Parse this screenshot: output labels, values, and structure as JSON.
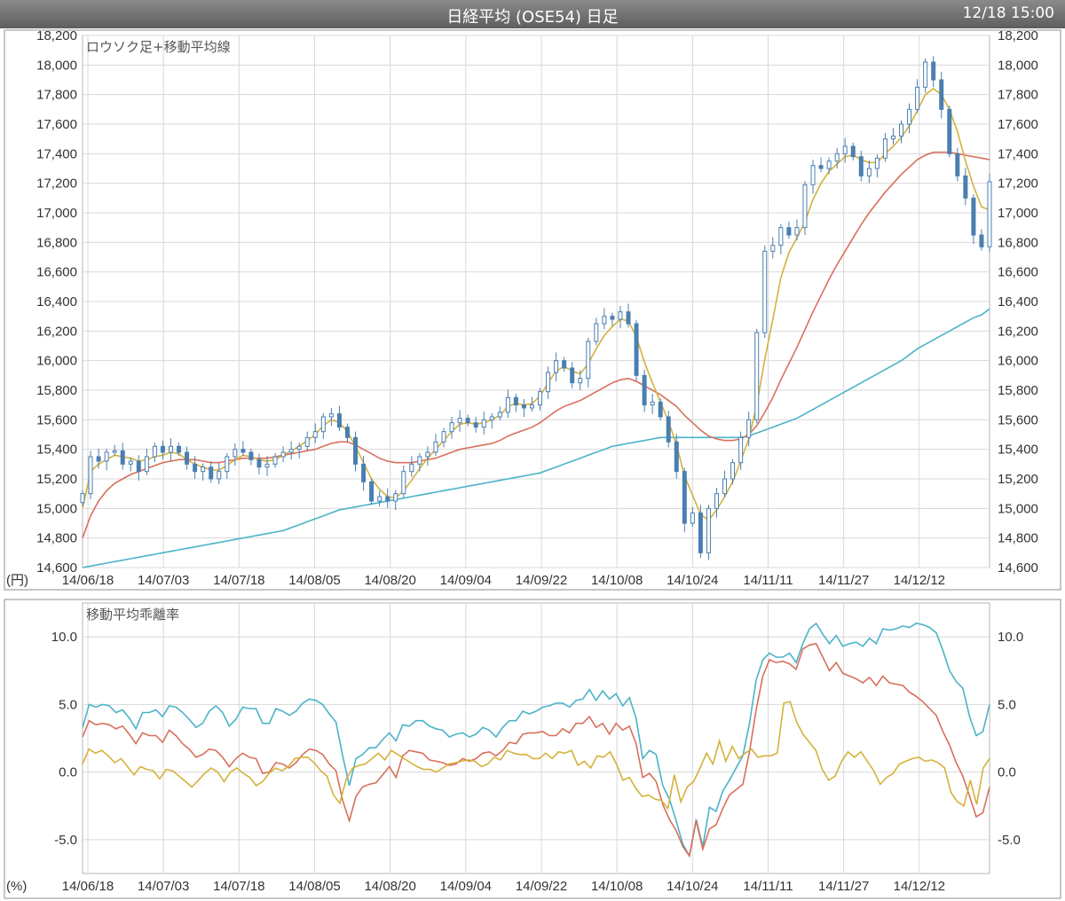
{
  "header": {
    "title": "日経平均 (OSE54) 日足",
    "timestamp": "12/18 15:00"
  },
  "chart_data": [
    {
      "type": "candlestick",
      "title": "ロウソク足+移動平均線",
      "unit_label": "(円)",
      "ylim": [
        14600,
        18200
      ],
      "y_ticks": [
        "18,200",
        "18,000",
        "17,800",
        "17,600",
        "17,400",
        "17,200",
        "17,000",
        "16,800",
        "16,600",
        "16,400",
        "16,200",
        "16,000",
        "15,800",
        "15,600",
        "15,400",
        "15,200",
        "15,000",
        "14,800",
        "14,600"
      ],
      "x_labels": [
        "14/06/18",
        "14/07/03",
        "14/07/18",
        "14/08/05",
        "14/08/20",
        "14/09/04",
        "14/09/22",
        "14/10/08",
        "14/10/24",
        "14/11/11",
        "14/11/27",
        "14/12/12"
      ],
      "grid": true,
      "colors": {
        "candle": "#4a7fb0",
        "ma_short": "#d4b23c",
        "ma_mid": "#d8705c",
        "ma_long": "#4bb3c8"
      },
      "close": [
        15100,
        15350,
        15320,
        15380,
        15390,
        15300,
        15320,
        15250,
        15350,
        15420,
        15380,
        15420,
        15380,
        15300,
        15250,
        15280,
        15200,
        15250,
        15350,
        15400,
        15380,
        15330,
        15280,
        15300,
        15350,
        15380,
        15400,
        15420,
        15480,
        15520,
        15620,
        15640,
        15550,
        15480,
        15300,
        15180,
        15050,
        15080,
        15050,
        15100,
        15250,
        15300,
        15350,
        15380,
        15450,
        15520,
        15580,
        15610,
        15580,
        15550,
        15600,
        15620,
        15650,
        15750,
        15700,
        15680,
        15700,
        15790,
        15920,
        16000,
        15950,
        15850,
        15880,
        16130,
        16250,
        16300,
        16280,
        16330,
        16250,
        15900,
        15700,
        15720,
        15620,
        15450,
        15250,
        14900,
        14970,
        14700,
        15000,
        15100,
        15200,
        15310,
        15480,
        15600,
        16190,
        16740,
        16780,
        16900,
        16850,
        16900,
        17190,
        17320,
        17300,
        17350,
        17400,
        17450,
        17380,
        17250,
        17300,
        17370,
        17500,
        17520,
        17600,
        17700,
        17850,
        18020,
        17900,
        17700,
        17400,
        17250,
        17100,
        16850,
        16770,
        17210
      ],
      "ma_short": [
        15000,
        15250,
        15300,
        15330,
        15360,
        15350,
        15340,
        15320,
        15330,
        15350,
        15360,
        15380,
        15370,
        15330,
        15300,
        15280,
        15260,
        15260,
        15290,
        15330,
        15360,
        15350,
        15330,
        15320,
        15330,
        15360,
        15390,
        15420,
        15460,
        15500,
        15560,
        15600,
        15580,
        15520,
        15420,
        15310,
        15200,
        15130,
        15080,
        15070,
        15120,
        15190,
        15270,
        15340,
        15400,
        15460,
        15520,
        15570,
        15580,
        15570,
        15580,
        15600,
        15630,
        15690,
        15710,
        15700,
        15710,
        15760,
        15850,
        15930,
        15960,
        15930,
        15910,
        15980,
        16080,
        16170,
        16230,
        16280,
        16270,
        16160,
        15990,
        15850,
        15720,
        15590,
        15430,
        15220,
        15090,
        14960,
        14920,
        14990,
        15080,
        15180,
        15320,
        15470,
        15700,
        16010,
        16280,
        16560,
        16730,
        16830,
        16940,
        17090,
        17200,
        17280,
        17330,
        17380,
        17390,
        17360,
        17340,
        17340,
        17400,
        17450,
        17510,
        17590,
        17690,
        17800,
        17840,
        17800,
        17700,
        17550,
        17350,
        17180,
        17040,
        17020
      ],
      "ma_mid": [
        14800,
        14950,
        15050,
        15120,
        15170,
        15200,
        15230,
        15250,
        15270,
        15290,
        15310,
        15320,
        15330,
        15330,
        15330,
        15320,
        15310,
        15310,
        15320,
        15330,
        15340,
        15340,
        15340,
        15340,
        15350,
        15360,
        15370,
        15380,
        15390,
        15400,
        15420,
        15440,
        15450,
        15450,
        15430,
        15400,
        15370,
        15340,
        15320,
        15310,
        15310,
        15310,
        15320,
        15330,
        15340,
        15360,
        15380,
        15400,
        15410,
        15420,
        15430,
        15440,
        15460,
        15490,
        15510,
        15530,
        15550,
        15580,
        15620,
        15660,
        15690,
        15710,
        15730,
        15760,
        15790,
        15820,
        15850,
        15870,
        15880,
        15860,
        15830,
        15800,
        15770,
        15730,
        15690,
        15630,
        15580,
        15530,
        15490,
        15470,
        15460,
        15460,
        15470,
        15500,
        15560,
        15650,
        15750,
        15870,
        15980,
        16090,
        16210,
        16330,
        16440,
        16550,
        16650,
        16740,
        16830,
        16920,
        17000,
        17070,
        17140,
        17200,
        17260,
        17310,
        17360,
        17390,
        17410,
        17410,
        17410,
        17400,
        17390,
        17380,
        17370,
        17360
      ],
      "ma_long": [
        14600,
        14610,
        14620,
        14630,
        14640,
        14650,
        14660,
        14670,
        14680,
        14690,
        14700,
        14710,
        14720,
        14730,
        14740,
        14750,
        14760,
        14770,
        14780,
        14790,
        14800,
        14810,
        14820,
        14830,
        14840,
        14850,
        14870,
        14890,
        14910,
        14930,
        14950,
        14970,
        14990,
        15000,
        15010,
        15020,
        15030,
        15040,
        15050,
        15060,
        15070,
        15080,
        15090,
        15100,
        15110,
        15120,
        15130,
        15140,
        15150,
        15160,
        15170,
        15180,
        15190,
        15200,
        15210,
        15220,
        15230,
        15240,
        15260,
        15280,
        15300,
        15320,
        15340,
        15360,
        15380,
        15400,
        15420,
        15430,
        15440,
        15450,
        15460,
        15470,
        15480,
        15480,
        15480,
        15480,
        15480,
        15480,
        15480,
        15480,
        15480,
        15480,
        15480,
        15490,
        15510,
        15530,
        15550,
        15570,
        15590,
        15610,
        15640,
        15670,
        15700,
        15730,
        15760,
        15790,
        15820,
        15850,
        15880,
        15910,
        15940,
        15970,
        16000,
        16040,
        16080,
        16110,
        16140,
        16170,
        16200,
        16230,
        16260,
        16290,
        16310,
        16350
      ]
    },
    {
      "type": "line",
      "title": "移動平均乖離率",
      "unit_label": "(%)",
      "ylim": [
        -7.5,
        12.5
      ],
      "y_ticks": [
        "10.0",
        "5.0",
        "0.0",
        "-5.0"
      ],
      "x_labels": [
        "14/06/18",
        "14/07/03",
        "14/07/18",
        "14/08/05",
        "14/08/20",
        "14/09/04",
        "14/09/22",
        "14/10/08",
        "14/10/24",
        "14/11/11",
        "14/11/27",
        "14/12/12"
      ],
      "grid": true,
      "series": [
        {
          "color": "#4bb3c8",
          "values": [
            3.3,
            5.0,
            4.8,
            5.0,
            4.9,
            4.4,
            4.6,
            4.0,
            3.2,
            4.4,
            4.4,
            4.6,
            4.1,
            4.9,
            4.8,
            4.4,
            3.9,
            3.3,
            3.6,
            4.5,
            4.9,
            4.4,
            3.4,
            3.9,
            4.8,
            4.7,
            4.7,
            3.6,
            3.6,
            4.7,
            4.5,
            4.2,
            4.5,
            5.1,
            5.4,
            5.3,
            5.0,
            4.3,
            3.7,
            1.2,
            -1.0,
            1.0,
            1.3,
            1.8,
            1.8,
            2.4,
            2.9,
            2.3,
            3.5,
            3.4,
            3.8,
            3.8,
            3.4,
            3.2,
            3.1,
            2.6,
            2.8,
            2.9,
            2.6,
            2.8,
            3.3,
            3.1,
            2.6,
            3.3,
            3.8,
            3.8,
            4.5,
            4.3,
            4.5,
            4.8,
            4.9,
            5.1,
            5.1,
            4.8,
            5.3,
            5.4,
            6.1,
            5.3,
            6.0,
            5.4,
            5.8,
            4.9,
            5.5,
            4.0,
            1.0,
            1.6,
            1.3,
            -1.0,
            -2.0,
            -3.6,
            -5.3,
            -6.2,
            -3.5,
            -5.5,
            -2.6,
            -2.9,
            -1.4,
            -0.6,
            0.3,
            1.2,
            3.6,
            6.8,
            8.3,
            8.8,
            8.5,
            8.5,
            8.8,
            8.1,
            9.5,
            10.6,
            11.0,
            10.2,
            9.5,
            10.1,
            9.3,
            9.5,
            9.6,
            9.3,
            9.9,
            9.5,
            10.6,
            10.5,
            10.6,
            10.8,
            10.7,
            11.0,
            10.9,
            10.7,
            10.3,
            9.0,
            7.5,
            6.7,
            6.2,
            4.1,
            2.7,
            3.0,
            5.0
          ]
        },
        {
          "color": "#d8705c",
          "values": [
            2.6,
            3.8,
            3.5,
            3.6,
            3.5,
            3.2,
            3.4,
            2.8,
            2.1,
            2.9,
            2.7,
            2.7,
            2.2,
            3.1,
            2.7,
            2.1,
            1.7,
            1.1,
            1.3,
            1.7,
            1.6,
            1.1,
            0.4,
            1.0,
            1.4,
            1.1,
            1.0,
            -0.1,
            0.0,
            0.7,
            0.6,
            0.3,
            0.7,
            1.3,
            1.7,
            1.6,
            1.3,
            0.6,
            0.1,
            -2.1,
            -3.6,
            -1.8,
            -1.1,
            -0.9,
            -0.8,
            -0.2,
            0.4,
            -0.4,
            1.2,
            1.6,
            1.5,
            1.4,
            0.9,
            0.8,
            0.7,
            0.5,
            0.6,
            1.0,
            0.8,
            1.0,
            1.4,
            1.5,
            1.2,
            1.6,
            2.2,
            2.1,
            2.8,
            2.9,
            2.9,
            3.0,
            2.7,
            2.7,
            3.2,
            2.9,
            3.6,
            3.6,
            4.1,
            3.3,
            3.6,
            2.8,
            3.6,
            3.1,
            3.4,
            2.1,
            -0.4,
            -0.1,
            -0.7,
            -2.4,
            -3.5,
            -4.3,
            -5.5,
            -6.2,
            -3.6,
            -5.7,
            -4.2,
            -3.9,
            -2.7,
            -1.7,
            -1.3,
            -0.9,
            1.5,
            4.6,
            7.1,
            8.3,
            8.1,
            8.2,
            8.0,
            7.6,
            9.1,
            9.4,
            9.5,
            8.5,
            7.5,
            8.1,
            7.3,
            7.1,
            6.9,
            6.6,
            7.0,
            6.4,
            7.1,
            6.6,
            6.5,
            6.4,
            5.9,
            5.6,
            5.2,
            4.7,
            4.2,
            3.0,
            2.0,
            0.7,
            -0.3,
            -1.8,
            -3.3,
            -3.0,
            -1.1
          ]
        },
        {
          "color": "#d4b23c",
          "values": [
            0.6,
            1.7,
            1.4,
            1.6,
            1.2,
            0.7,
            1.0,
            0.4,
            -0.2,
            0.4,
            0.2,
            0.1,
            -0.5,
            0.2,
            0.1,
            -0.3,
            -0.7,
            -1.1,
            -0.6,
            -0.1,
            0.3,
            0.0,
            -0.7,
            0.0,
            0.3,
            -0.1,
            -0.4,
            -1.0,
            -0.7,
            -0.1,
            0.3,
            0.1,
            0.4,
            1.0,
            1.1,
            1.1,
            0.7,
            0.1,
            -0.3,
            -1.7,
            -2.3,
            -0.5,
            0.3,
            0.5,
            0.6,
            1.0,
            1.4,
            0.9,
            1.6,
            1.3,
            1.0,
            0.7,
            0.4,
            0.2,
            0.2,
            0.0,
            0.3,
            0.6,
            0.7,
            0.8,
            0.9,
            0.8,
            0.4,
            0.6,
            1.1,
            0.9,
            1.6,
            1.4,
            1.3,
            1.3,
            1.0,
            1.0,
            1.4,
            1.0,
            1.5,
            1.4,
            1.6,
            0.5,
            0.8,
            0.3,
            1.2,
            1.1,
            1.5,
            0.6,
            -0.6,
            -0.4,
            -1.2,
            -1.8,
            -1.7,
            -2.0,
            -2.1,
            -2.7,
            -0.2,
            -2.2,
            -1.1,
            -0.7,
            0.3,
            1.4,
            0.6,
            2.3,
            0.8,
            1.9,
            1.0,
            1.4,
            1.7,
            1.1,
            1.2,
            1.2,
            1.4,
            5.1,
            5.2,
            3.7,
            2.8,
            2.2,
            1.6,
            0.2,
            -0.6,
            -0.3,
            0.8,
            1.5,
            1.1,
            1.5,
            0.8,
            0.1,
            -0.9,
            -0.4,
            -0.1,
            0.6,
            0.8,
            1.0,
            1.1,
            0.8,
            0.9,
            0.7,
            0.3,
            -1.5,
            -2.2,
            -2.5,
            -0.6,
            -2.4,
            0.3,
            1.0
          ]
        }
      ]
    }
  ]
}
